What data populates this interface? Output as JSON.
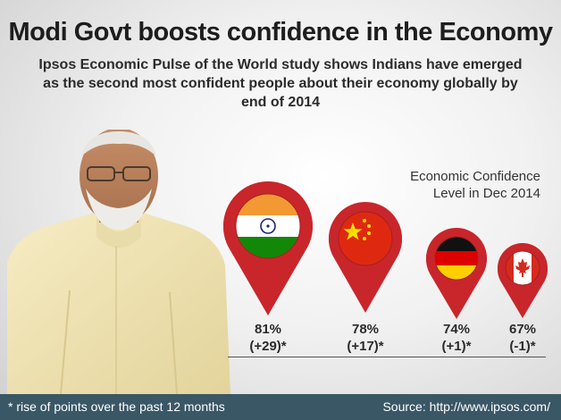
{
  "header": {
    "title": "Modi Govt boosts confidence in the Economy",
    "subtitle": "Ipsos Economic Pulse of the World study shows Indians have emerged as the second most confident people about their economy globally by end of 2014"
  },
  "chart_data": {
    "type": "other",
    "title": "Economic Confidence Level in Dec 2014",
    "title_lines": [
      "Economic Confidence",
      "Level in Dec 2014"
    ],
    "categories": [
      "India",
      "China",
      "Germany",
      "Canada"
    ],
    "values": [
      81,
      78,
      74,
      67
    ],
    "changes": [
      29,
      17,
      1,
      -1
    ],
    "value_labels": [
      "81%",
      "78%",
      "74%",
      "67%"
    ],
    "change_labels": [
      "(+29)*",
      "(+17)*",
      "(+1)*",
      "(-1)*"
    ],
    "marker_color": "#c8262b"
  },
  "footer": {
    "note": "* rise of points over the past 12 months",
    "source": "Source: http://www.ipsos.com/",
    "bg_color": "#3a5766"
  }
}
